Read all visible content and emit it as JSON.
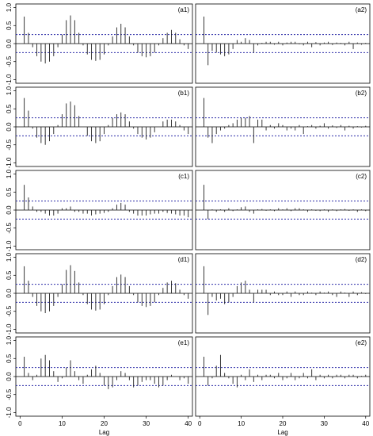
{
  "chart_data": [
    {
      "type": "bar",
      "title": "(a1)",
      "color": "#222222",
      "ci_color": "#2b2ba8",
      "ci_bounds": [
        -0.25,
        0.25
      ],
      "xlim": [
        -1,
        41
      ],
      "ylim": [
        -1.1,
        1.1
      ],
      "yticks": [
        {
          "value": -1,
          "label": "-1.0"
        },
        {
          "value": -0.5,
          "label": "-0.5"
        },
        {
          "value": 0,
          "label": "0.0"
        },
        {
          "value": 0.5,
          "label": "0.5"
        },
        {
          "value": 1,
          "label": "1.0"
        }
      ],
      "x": [
        1,
        2,
        3,
        4,
        5,
        6,
        7,
        8,
        9,
        10,
        11,
        12,
        13,
        14,
        15,
        16,
        17,
        18,
        19,
        20,
        21,
        22,
        23,
        24,
        25,
        26,
        27,
        28,
        29,
        30,
        31,
        32,
        33,
        34,
        35,
        36,
        37,
        38,
        39,
        40
      ],
      "values": [
        0.75,
        0.3,
        -0.1,
        -0.35,
        -0.5,
        -0.55,
        -0.5,
        -0.35,
        -0.1,
        0.25,
        0.65,
        0.78,
        0.65,
        0.3,
        -0.05,
        -0.3,
        -0.45,
        -0.48,
        -0.45,
        -0.3,
        -0.05,
        0.2,
        0.45,
        0.55,
        0.45,
        0.2,
        -0.05,
        -0.25,
        -0.35,
        -0.38,
        -0.35,
        -0.25,
        -0.05,
        0.15,
        0.3,
        0.38,
        0.3,
        0.12,
        -0.05,
        -0.15
      ]
    },
    {
      "type": "bar",
      "title": "(a2)",
      "color": "#222222",
      "ci_color": "#2b2ba8",
      "ci_bounds": [
        -0.25,
        0.25
      ],
      "xlim": [
        -1,
        41
      ],
      "ylim": [
        -1.1,
        1.1
      ],
      "x": [
        1,
        2,
        3,
        4,
        5,
        6,
        7,
        8,
        9,
        10,
        11,
        12,
        13,
        14,
        15,
        16,
        17,
        18,
        19,
        20,
        21,
        22,
        23,
        24,
        25,
        26,
        27,
        28,
        29,
        30,
        31,
        32,
        33,
        34,
        35,
        36,
        37,
        38,
        39,
        40
      ],
      "values": [
        0.75,
        -0.6,
        -0.2,
        -0.25,
        -0.3,
        -0.35,
        -0.3,
        -0.15,
        0.1,
        0.05,
        0.15,
        0.1,
        -0.25,
        -0.05,
        0.02,
        0.05,
        0.05,
        -0.03,
        0.05,
        -0.05,
        0.03,
        0.05,
        0.05,
        -0.02,
        -0.05,
        0.05,
        -0.1,
        0.04,
        -0.05,
        0.03,
        0.05,
        -0.04,
        0.03,
        0.02,
        -0.05,
        0.05,
        -0.15,
        0.03,
        -0.03,
        0.02
      ]
    },
    {
      "type": "bar",
      "title": "(b1)",
      "color": "#222222",
      "ci_color": "#2b2ba8",
      "ci_bounds": [
        -0.25,
        0.25
      ],
      "xlim": [
        -1,
        41
      ],
      "ylim": [
        -1.1,
        1.1
      ],
      "yticks": [
        {
          "value": -1,
          "label": "-1.0"
        },
        {
          "value": -0.5,
          "label": "-0.5"
        },
        {
          "value": 0,
          "label": "0.0"
        },
        {
          "value": 0.5,
          "label": "0.5"
        },
        {
          "value": 1,
          "label": "1.0"
        }
      ],
      "x": [
        1,
        2,
        3,
        4,
        5,
        6,
        7,
        8,
        9,
        10,
        11,
        12,
        13,
        14,
        15,
        16,
        17,
        18,
        19,
        20,
        21,
        22,
        23,
        24,
        25,
        26,
        27,
        28,
        29,
        30,
        31,
        32,
        33,
        34,
        35,
        36,
        37,
        38,
        39,
        40
      ],
      "values": [
        0.8,
        0.45,
        -0.05,
        -0.3,
        -0.45,
        -0.5,
        -0.4,
        -0.2,
        0.05,
        0.35,
        0.65,
        0.7,
        0.6,
        0.3,
        0,
        -0.25,
        -0.4,
        -0.45,
        -0.4,
        -0.2,
        0.05,
        0.25,
        0.35,
        0.4,
        0.35,
        0.15,
        -0.05,
        -0.2,
        -0.3,
        -0.35,
        -0.3,
        -0.15,
        0,
        0.15,
        0.2,
        0.2,
        0.15,
        0.05,
        -0.1,
        -0.2
      ]
    },
    {
      "type": "bar",
      "title": "(b2)",
      "color": "#222222",
      "ci_color": "#2b2ba8",
      "ci_bounds": [
        -0.25,
        0.25
      ],
      "xlim": [
        -1,
        41
      ],
      "ylim": [
        -1.1,
        1.1
      ],
      "x": [
        1,
        2,
        3,
        4,
        5,
        6,
        7,
        8,
        9,
        10,
        11,
        12,
        13,
        14,
        15,
        16,
        17,
        18,
        19,
        20,
        21,
        22,
        23,
        24,
        25,
        26,
        27,
        28,
        29,
        30,
        31,
        32,
        33,
        34,
        35,
        36,
        37,
        38,
        39,
        40
      ],
      "values": [
        0.8,
        -0.3,
        -0.45,
        -0.2,
        -0.1,
        -0.05,
        0.05,
        0.1,
        0.2,
        0.25,
        0.25,
        0.3,
        -0.45,
        0.2,
        0.2,
        -0.1,
        0.05,
        -0.05,
        0.1,
        0.05,
        -0.1,
        -0.05,
        -0.1,
        0.05,
        -0.2,
        0.02,
        0.05,
        -0.05,
        0.03,
        0.1,
        -0.05,
        0.04,
        -0.03,
        0.05,
        -0.1,
        0.03,
        -0.05,
        0.02,
        -0.02,
        0.03
      ]
    },
    {
      "type": "bar",
      "title": "(c1)",
      "color": "#222222",
      "ci_color": "#2b2ba8",
      "ci_bounds": [
        -0.25,
        0.25
      ],
      "xlim": [
        -1,
        41
      ],
      "ylim": [
        -1.1,
        1.1
      ],
      "yticks": [
        {
          "value": -1,
          "label": "-1.0"
        },
        {
          "value": -0.5,
          "label": "-0.5"
        },
        {
          "value": 0,
          "label": "0.0"
        },
        {
          "value": 0.5,
          "label": "0.5"
        },
        {
          "value": 1,
          "label": "1.0"
        }
      ],
      "x": [
        1,
        2,
        3,
        4,
        5,
        6,
        7,
        8,
        9,
        10,
        11,
        12,
        13,
        14,
        15,
        16,
        17,
        18,
        19,
        20,
        21,
        22,
        23,
        24,
        25,
        26,
        27,
        28,
        29,
        30,
        31,
        32,
        33,
        34,
        35,
        36,
        37,
        38,
        39,
        40
      ],
      "values": [
        0.7,
        0.35,
        0.1,
        -0.05,
        -0.05,
        -0.1,
        -0.15,
        -0.15,
        -0.1,
        0.05,
        0.05,
        0.1,
        -0.05,
        -0.05,
        -0.1,
        -0.1,
        -0.15,
        -0.12,
        -0.1,
        -0.08,
        -0.05,
        0.05,
        0.15,
        0.2,
        0.15,
        -0.05,
        -0.1,
        -0.15,
        -0.15,
        -0.15,
        -0.12,
        -0.1,
        -0.1,
        -0.05,
        -0.08,
        -0.1,
        -0.12,
        -0.15,
        -0.15,
        -0.2
      ]
    },
    {
      "type": "bar",
      "title": "(c2)",
      "color": "#222222",
      "ci_color": "#2b2ba8",
      "ci_bounds": [
        -0.25,
        0.25
      ],
      "xlim": [
        -1,
        41
      ],
      "ylim": [
        -1.1,
        1.1
      ],
      "x": [
        1,
        2,
        3,
        4,
        5,
        6,
        7,
        8,
        9,
        10,
        11,
        12,
        13,
        14,
        15,
        16,
        17,
        18,
        19,
        20,
        21,
        22,
        23,
        24,
        25,
        26,
        27,
        28,
        29,
        30,
        31,
        32,
        33,
        34,
        35,
        36,
        37,
        38,
        39,
        40
      ],
      "values": [
        0.7,
        -0.25,
        0.02,
        -0.05,
        0.02,
        -0.05,
        0.05,
        -0.03,
        0.02,
        0.08,
        0.1,
        -0.05,
        -0.1,
        0.02,
        0.03,
        -0.02,
        0.02,
        -0.03,
        0.05,
        0.02,
        0.05,
        -0.03,
        0.05,
        0.05,
        0.02,
        -0.05,
        0.02,
        -0.02,
        -0.03,
        0.02,
        -0.05,
        0.02,
        -0.03,
        0.02,
        0.03,
        -0.02,
        0.02,
        -0.05,
        0.02,
        -0.03
      ]
    },
    {
      "type": "bar",
      "title": "(d1)",
      "color": "#222222",
      "ci_color": "#2b2ba8",
      "ci_bounds": [
        -0.25,
        0.25
      ],
      "xlim": [
        -1,
        41
      ],
      "ylim": [
        -1.1,
        1.1
      ],
      "yticks": [
        {
          "value": -1,
          "label": "-1.0"
        },
        {
          "value": -0.5,
          "label": "-0.5"
        },
        {
          "value": 0,
          "label": "0.0"
        },
        {
          "value": 0.5,
          "label": "0.5"
        },
        {
          "value": 1,
          "label": "1.0"
        }
      ],
      "x": [
        1,
        2,
        3,
        4,
        5,
        6,
        7,
        8,
        9,
        10,
        11,
        12,
        13,
        14,
        15,
        16,
        17,
        18,
        19,
        20,
        21,
        22,
        23,
        24,
        25,
        26,
        27,
        28,
        29,
        30,
        31,
        32,
        33,
        34,
        35,
        36,
        37,
        38,
        39,
        40
      ],
      "values": [
        0.75,
        0.35,
        -0.1,
        -0.35,
        -0.5,
        -0.55,
        -0.5,
        -0.35,
        -0.1,
        0.25,
        0.65,
        0.78,
        0.62,
        0.3,
        -0.05,
        -0.3,
        -0.45,
        -0.48,
        -0.45,
        -0.3,
        -0.05,
        0.2,
        0.45,
        0.52,
        0.45,
        0.2,
        -0.05,
        -0.25,
        -0.35,
        -0.38,
        -0.35,
        -0.25,
        -0.05,
        0.15,
        0.3,
        0.35,
        0.28,
        0.1,
        -0.05,
        -0.15
      ]
    },
    {
      "type": "bar",
      "title": "(d2)",
      "color": "#222222",
      "ci_color": "#2b2ba8",
      "ci_bounds": [
        -0.25,
        0.25
      ],
      "xlim": [
        -1,
        41
      ],
      "ylim": [
        -1.1,
        1.1
      ],
      "x": [
        1,
        2,
        3,
        4,
        5,
        6,
        7,
        8,
        9,
        10,
        11,
        12,
        13,
        14,
        15,
        16,
        17,
        18,
        19,
        20,
        21,
        22,
        23,
        24,
        25,
        26,
        27,
        28,
        29,
        30,
        31,
        32,
        33,
        34,
        35,
        36,
        37,
        38,
        39,
        40
      ],
      "values": [
        0.75,
        -0.6,
        -0.1,
        -0.2,
        -0.15,
        -0.3,
        -0.25,
        -0.1,
        0.2,
        0.3,
        0.35,
        0.1,
        -0.25,
        0.1,
        0.1,
        0.1,
        -0.05,
        0.05,
        -0.05,
        -0.05,
        0.05,
        -0.1,
        0.05,
        -0.05,
        -0.05,
        0.05,
        0.02,
        -0.05,
        0.05,
        0.02,
        0.05,
        -0.05,
        -0.1,
        0.05,
        0.02,
        -0.1,
        0.05,
        -0.05,
        0.03,
        -0.02
      ]
    },
    {
      "type": "bar",
      "title": "(e1)",
      "xlabel": "Lag",
      "color": "#222222",
      "ci_color": "#2b2ba8",
      "ci_bounds": [
        -0.25,
        0.25
      ],
      "xlim": [
        -1,
        41
      ],
      "ylim": [
        -1.1,
        1.1
      ],
      "xticks": [
        0,
        10,
        20,
        30,
        40
      ],
      "yticks": [
        {
          "value": -1,
          "label": "-1.0"
        },
        {
          "value": -0.5,
          "label": "-0.5"
        },
        {
          "value": 0,
          "label": "0.0"
        },
        {
          "value": 0.5,
          "label": "0.5"
        },
        {
          "value": 1,
          "label": "1.0"
        }
      ],
      "x": [
        1,
        2,
        3,
        4,
        5,
        6,
        7,
        8,
        9,
        10,
        11,
        12,
        13,
        14,
        15,
        16,
        17,
        18,
        19,
        20,
        21,
        22,
        23,
        24,
        25,
        26,
        27,
        28,
        29,
        30,
        31,
        32,
        33,
        34,
        35,
        36,
        37,
        38,
        39,
        40
      ],
      "values": [
        0.55,
        0.1,
        -0.1,
        0.05,
        0.5,
        0.6,
        0.45,
        0.15,
        -0.15,
        -0.05,
        0.25,
        0.45,
        0.15,
        -0.1,
        -0.2,
        0.05,
        0.2,
        0.3,
        0.1,
        -0.25,
        -0.35,
        -0.3,
        -0.1,
        0.15,
        0.1,
        -0.1,
        -0.3,
        -0.25,
        -0.15,
        -0.1,
        -0.1,
        -0.2,
        -0.3,
        -0.25,
        -0.1,
        0.05,
        0,
        -0.1,
        -0.05,
        -0.2
      ]
    },
    {
      "type": "bar",
      "title": "(e2)",
      "xlabel": "Lag",
      "color": "#222222",
      "ci_color": "#2b2ba8",
      "ci_bounds": [
        -0.25,
        0.25
      ],
      "xlim": [
        -1,
        41
      ],
      "ylim": [
        -1.1,
        1.1
      ],
      "xticks": [
        0,
        10,
        20,
        30,
        40
      ],
      "x": [
        1,
        2,
        3,
        4,
        5,
        6,
        7,
        8,
        9,
        10,
        11,
        12,
        13,
        14,
        15,
        16,
        17,
        18,
        19,
        20,
        21,
        22,
        23,
        24,
        25,
        26,
        27,
        28,
        29,
        30,
        31,
        32,
        33,
        34,
        35,
        36,
        37,
        38,
        39,
        40
      ],
      "values": [
        0.55,
        -0.25,
        -0.05,
        0.3,
        0.6,
        0.1,
        -0.05,
        -0.2,
        -0.3,
        0.05,
        -0.1,
        0.2,
        -0.15,
        0.05,
        -0.1,
        0.05,
        0.05,
        -0.05,
        0.1,
        -0.1,
        -0.05,
        0.1,
        -0.1,
        -0.05,
        0.1,
        -0.05,
        0.2,
        -0.1,
        0.05,
        -0.05,
        0.05,
        -0.05,
        0.05,
        0.05,
        -0.05,
        0.05,
        0.05,
        -0.05,
        0.02,
        0.05
      ]
    }
  ]
}
